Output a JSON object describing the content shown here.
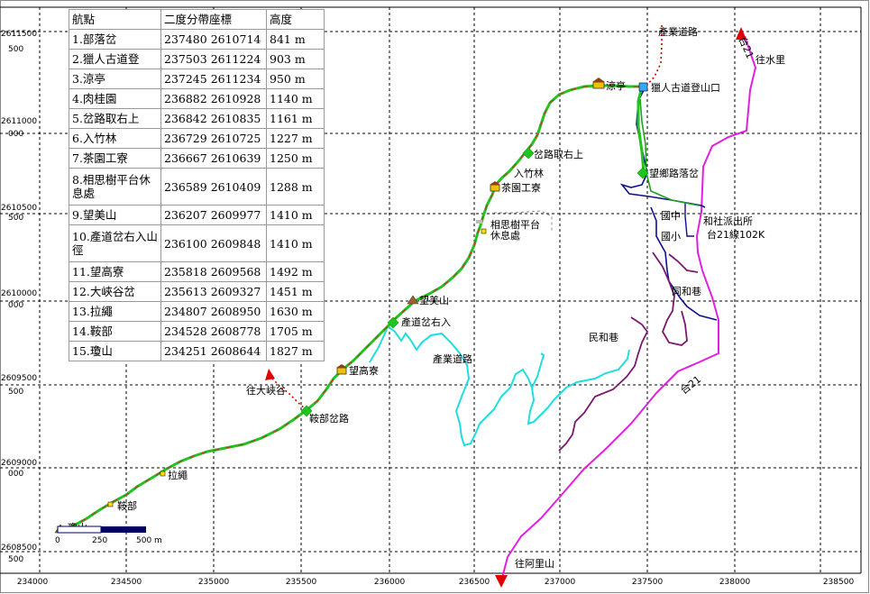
{
  "colors": {
    "trail_green": "#22c222",
    "trail_red": "#c83232",
    "highway_magenta": "#e020e0",
    "industry_road_cyan": "#22dde0",
    "river_blue": "#10108c",
    "stream_purple": "#7a1a6e",
    "connector_red": "#d00000",
    "grid": "#000000",
    "scale_navy": "#000066"
  },
  "grid": {
    "x_labels": [
      "234000",
      "234500",
      "235000",
      "235500",
      "236000",
      "236500",
      "237000",
      "237500",
      "238000",
      "238500"
    ],
    "y_labels_top": [
      "2611500",
      "2611000",
      "2610500",
      "2610000",
      "2609500",
      "2609000",
      "2608500"
    ],
    "y_labels_side": [
      "500",
      "000",
      "500",
      "000",
      "500",
      "000",
      "500"
    ]
  },
  "table": {
    "headers": [
      "航點",
      "二度分帶座標",
      "高度"
    ],
    "rows": [
      {
        "name": "1.部落岔",
        "coord": "237480 2610714",
        "alt": "841 m"
      },
      {
        "name": "2.獵人古道登",
        "coord": "237503 2611224",
        "alt": "903 m"
      },
      {
        "name": "3.涼亭",
        "coord": "237245 2611234",
        "alt": "950 m"
      },
      {
        "name": "4.肉桂園",
        "coord": "236882 2610928",
        "alt": "1140 m"
      },
      {
        "name": "5.岔路取右上",
        "coord": "236842 2610835",
        "alt": "1161 m"
      },
      {
        "name": "6.入竹林",
        "coord": "236729 2610725",
        "alt": "1227 m"
      },
      {
        "name": "7.茶園工寮",
        "coord": "236667 2610639",
        "alt": "1250 m"
      },
      {
        "name": "8.相思樹平台休息處",
        "coord": "236589 2610409",
        "alt": "1288 m"
      },
      {
        "name": "9.望美山",
        "coord": "236207 2609977",
        "alt": "1410 m"
      },
      {
        "name": "10.產道岔右入山徑",
        "coord": "236100 2609848",
        "alt": "1410 m"
      },
      {
        "name": "11.望高寮",
        "coord": "235818 2609568",
        "alt": "1492 m"
      },
      {
        "name": "12.大峽谷岔",
        "coord": "235613 2609327",
        "alt": "1451 m"
      },
      {
        "name": "13.拉繩",
        "coord": "234807 2608950",
        "alt": "1630 m"
      },
      {
        "name": "14.鞍部",
        "coord": "234528 2608778",
        "alt": "1705 m"
      },
      {
        "name": "15.瓊山",
        "coord": "234251 2608644",
        "alt": "1827 m"
      }
    ]
  },
  "labels": {
    "industry_road_top": "產業道路",
    "to_shuili": "往水里",
    "road_21_top": "台21",
    "liangting": "涼亭",
    "hunter_trailhead": "獵人古道登山口",
    "fork_right_up": "岔路取右上",
    "enter_bamboo": "入竹林",
    "tea_hut": "茶園工寮",
    "wangxiang_fork": "望鄉路落岔",
    "acacia_platform": "相思樹平台",
    "rest_area": "休息處",
    "school_1": "國中",
    "school_2": "國小",
    "police_station": "和社派出所",
    "highway_km": "台21線102K",
    "tonghe_lane": "同和巷",
    "minhe_lane": "民和巷",
    "wangmei": "望美山",
    "industry_fork": "產道岔右入",
    "industry_road_mid": "產業道路",
    "wanggao": "望高寮",
    "to_grand_canyon": "往大峽谷",
    "saddle_fork": "鞍部岔路",
    "rope": "拉繩",
    "saddle": "鞍部",
    "qiongshan": "瓊山",
    "road_21_mid": "台21",
    "to_alishan": "往阿里山"
  },
  "scale": {
    "ticks": [
      "0",
      "250",
      "500 m"
    ]
  }
}
